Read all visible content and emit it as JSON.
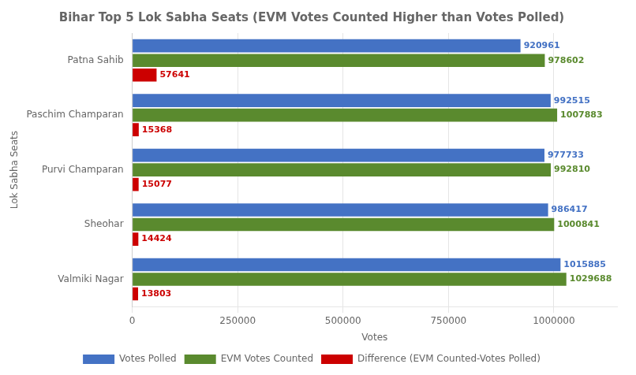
{
  "chart_data": {
    "type": "bar",
    "orientation": "horizontal",
    "title": "Bihar Top 5 Lok Sabha Seats (EVM Votes Counted Higher than Votes Polled)",
    "xlabel": "Votes",
    "ylabel": "Lok Sabha Seats",
    "categories": [
      "Patna Sahib",
      "Paschim Champaran",
      "Purvi Champaran",
      "Sheohar",
      "Valmiki Nagar"
    ],
    "series": [
      {
        "name": "Votes Polled",
        "color": "#4472C4",
        "values": [
          920961,
          992515,
          977733,
          986417,
          1015885
        ]
      },
      {
        "name": "EVM Votes Counted",
        "color": "#5A8A2E",
        "values": [
          978602,
          1007883,
          992810,
          1000841,
          1029688
        ]
      },
      {
        "name": "Difference (EVM Counted-Votes Polled)",
        "color": "#CC0000",
        "values": [
          57641,
          15368,
          15077,
          14424,
          13803
        ]
      }
    ],
    "xlim": [
      0,
      1150000
    ],
    "xticks": [
      0,
      250000,
      500000,
      750000,
      1000000
    ],
    "grid": true,
    "legend": "bottom",
    "data_labels": true
  }
}
